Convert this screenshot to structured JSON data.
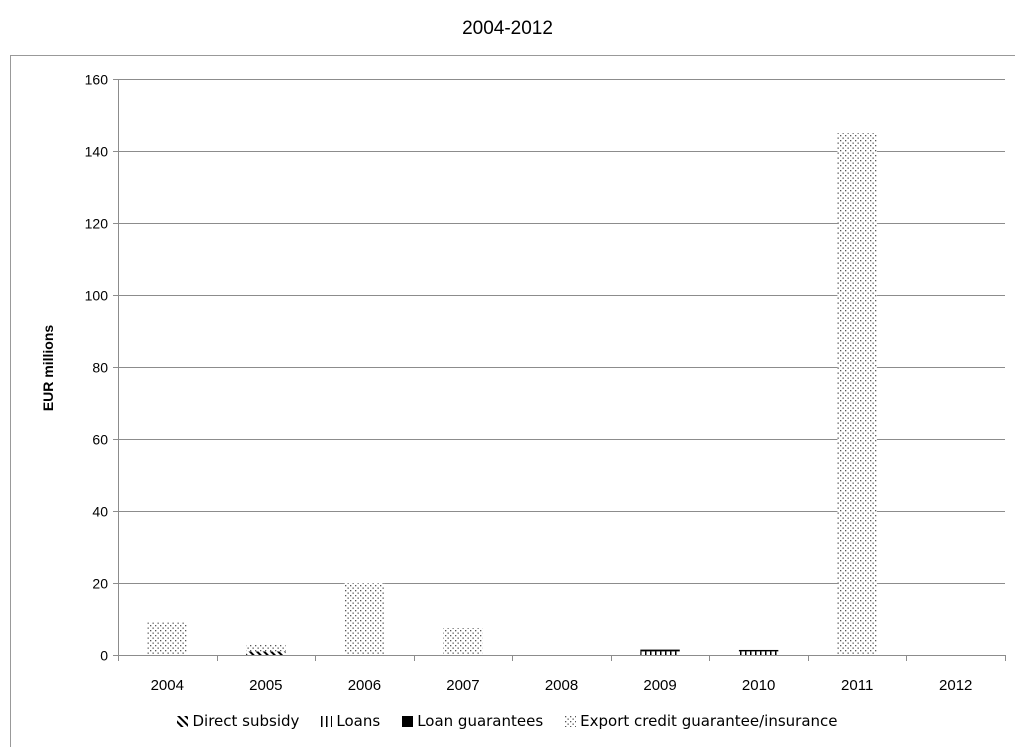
{
  "chart_data": {
    "type": "bar",
    "stacked": true,
    "title": "2004-2012",
    "xlabel": "",
    "ylabel": "EUR millions",
    "ylim": [
      0,
      160
    ],
    "yticks": [
      0,
      20,
      40,
      60,
      80,
      100,
      120,
      140,
      160
    ],
    "grid": "horizontal",
    "legend_position": "bottom",
    "categories": [
      "2004",
      "2005",
      "2006",
      "2007",
      "2008",
      "2009",
      "2010",
      "2011",
      "2012"
    ],
    "series": [
      {
        "name": "Direct subsidy",
        "pattern": "diagonal",
        "values": [
          0,
          1,
          0,
          0,
          0,
          0,
          0,
          0,
          0
        ]
      },
      {
        "name": "Loans",
        "pattern": "vertical",
        "values": [
          0,
          0,
          0,
          0,
          0,
          1,
          1,
          0,
          0
        ]
      },
      {
        "name": "Loan guarantees",
        "pattern": "solid",
        "values": [
          0,
          0,
          0,
          0,
          0,
          0.5,
          0.4,
          0,
          0
        ]
      },
      {
        "name": "Export credit guarantee/insurance",
        "pattern": "dots",
        "values": [
          9,
          1.8,
          20,
          7.5,
          0,
          0,
          0,
          145,
          0
        ]
      }
    ]
  }
}
